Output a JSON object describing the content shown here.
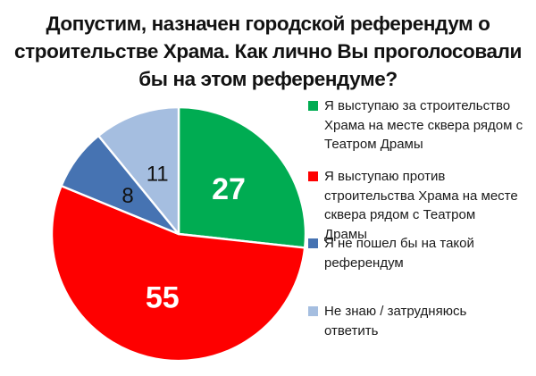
{
  "title": {
    "text": "Допустим, назначен городской референдум о строительстве Храма. Как лично Вы проголосовали бы на этом референдуме?",
    "lines": [
      "Допустим, назначен городской референдум о",
      "строительстве Храма. Как лично Вы проголосовали",
      "бы на этом референдуме?"
    ]
  },
  "legend": {
    "position": "right",
    "items": [
      {
        "label": "Я выступаю за строительство Храма на месте сквера рядом с Театром Драмы",
        "lines": [
          "Я выступаю за строительство",
          "Храма на месте сквера рядом с",
          "Театром Драмы"
        ],
        "color": "#00AC52",
        "value": 27
      },
      {
        "label": "Я выступаю против строительства Храма на месте сквера рядом с Театром Драмы",
        "lines": [
          "Я выступаю против",
          "строительства Храма на месте",
          "сквера рядом с Театром",
          "Драмы"
        ],
        "color": "#FE0000",
        "value": 55
      },
      {
        "label": "Я не пошел бы на такой референдум",
        "lines": [
          "Я не пошел бы на такой",
          "референдум"
        ],
        "color": "#4673B2",
        "value": 8
      },
      {
        "label": "Не знаю / затрудняюсь ответить",
        "lines": [
          "Не знаю / затрудняюсь",
          "ответить"
        ],
        "color": "#A5BEE0",
        "value": 11
      }
    ]
  },
  "chart_data": {
    "type": "pie",
    "title": "Допустим, назначен городской референдум о строительстве Храма. Как лично Вы проголосовали бы на этом референдуме?",
    "labels": [
      "Я выступаю за строительство Храма на месте сквера рядом с Театром Драмы",
      "Я выступаю против строительства Храма на месте сквера рядом с Театром Драмы",
      "Я не пошел бы на такой референдум",
      "Не знаю / затрудняюсь ответить"
    ],
    "values": [
      27,
      55,
      8,
      11
    ],
    "total": 101,
    "data_labels": [
      "27",
      "55",
      "8",
      "11"
    ],
    "colors": [
      "#00AC52",
      "#FE0000",
      "#4673B2",
      "#A5BEE0"
    ],
    "data_label_colors": [
      "#ffffff",
      "#ffffff",
      "#111111",
      "#111111"
    ],
    "legend_position": "right",
    "start_angle_deg": 0,
    "direction": "clockwise",
    "slice_border_color": "#ffffff"
  }
}
